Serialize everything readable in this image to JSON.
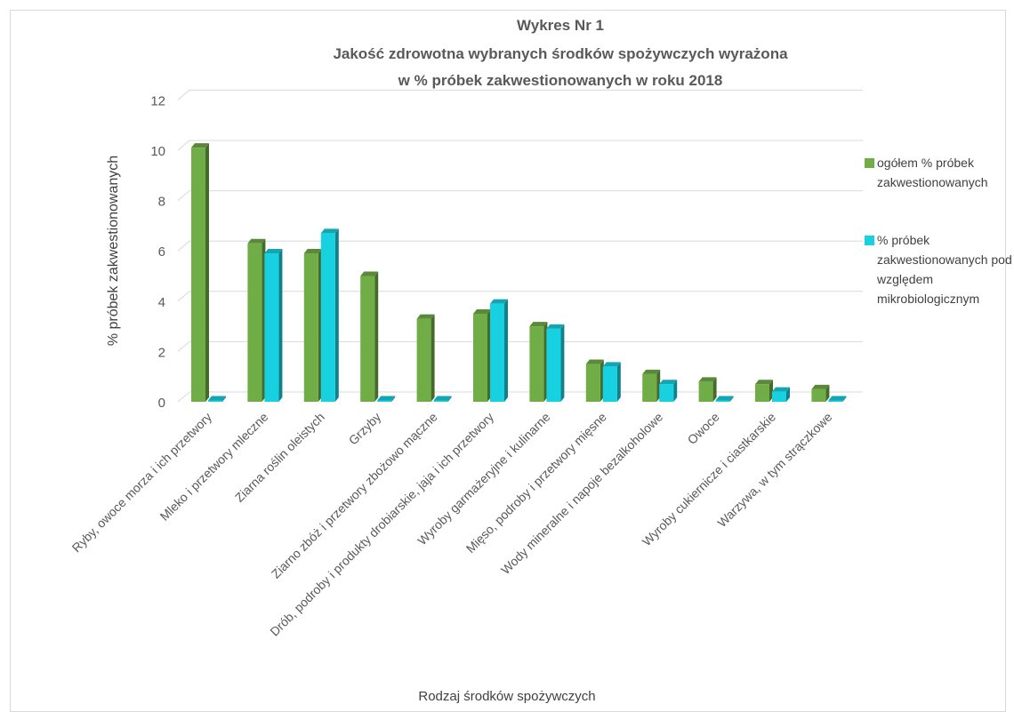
{
  "chart_data": {
    "type": "bar",
    "title": "Wykres Nr 1",
    "subtitle_line1": "Jakość zdrowotna wybranych środków spożywczych wyrażona",
    "subtitle_line2": "w % próbek zakwestionowanych w roku 2018",
    "xlabel": "Rodzaj środków spożywczych",
    "ylabel": "% próbek zakwestionowanych",
    "ylim": [
      0,
      12
    ],
    "yticks": [
      "0",
      "2",
      "4",
      "6",
      "8",
      "10",
      "12"
    ],
    "grid": true,
    "legend_position": "right",
    "categories": [
      "Ryby, owoce morza i ich przetwory",
      "Mleko i przetwory mleczne",
      "Ziarna roślin oleistych",
      "Grzyby",
      "Ziarno zbóż i przetwory zbożowo mączne",
      "Drób, podroby i produkty drobiarskie, jaja i ich przetwory",
      "Wyroby garmażeryjne i kulinarne",
      "Mięso, podroby i przetwory mięsne",
      "Wody mineralne i napoje bezalkoholowe",
      "Owoce",
      "Wyroby cukiernicze i ciastkarskie",
      "Warzywa, w tym strączkowe"
    ],
    "series": [
      {
        "name": "ogółem % próbek zakwestionowanych",
        "color": "#70ad47",
        "values": [
          10.1,
          6.3,
          5.9,
          5.0,
          3.3,
          3.5,
          3.0,
          1.5,
          1.1,
          0.8,
          0.7,
          0.5
        ]
      },
      {
        "name": "% próbek zakwestionowanych pod względem mikrobiologicznym",
        "color": "#17d0e0",
        "values": [
          0,
          5.9,
          6.7,
          0,
          0,
          3.9,
          2.9,
          1.4,
          0.7,
          0,
          0.4,
          0
        ]
      }
    ]
  }
}
